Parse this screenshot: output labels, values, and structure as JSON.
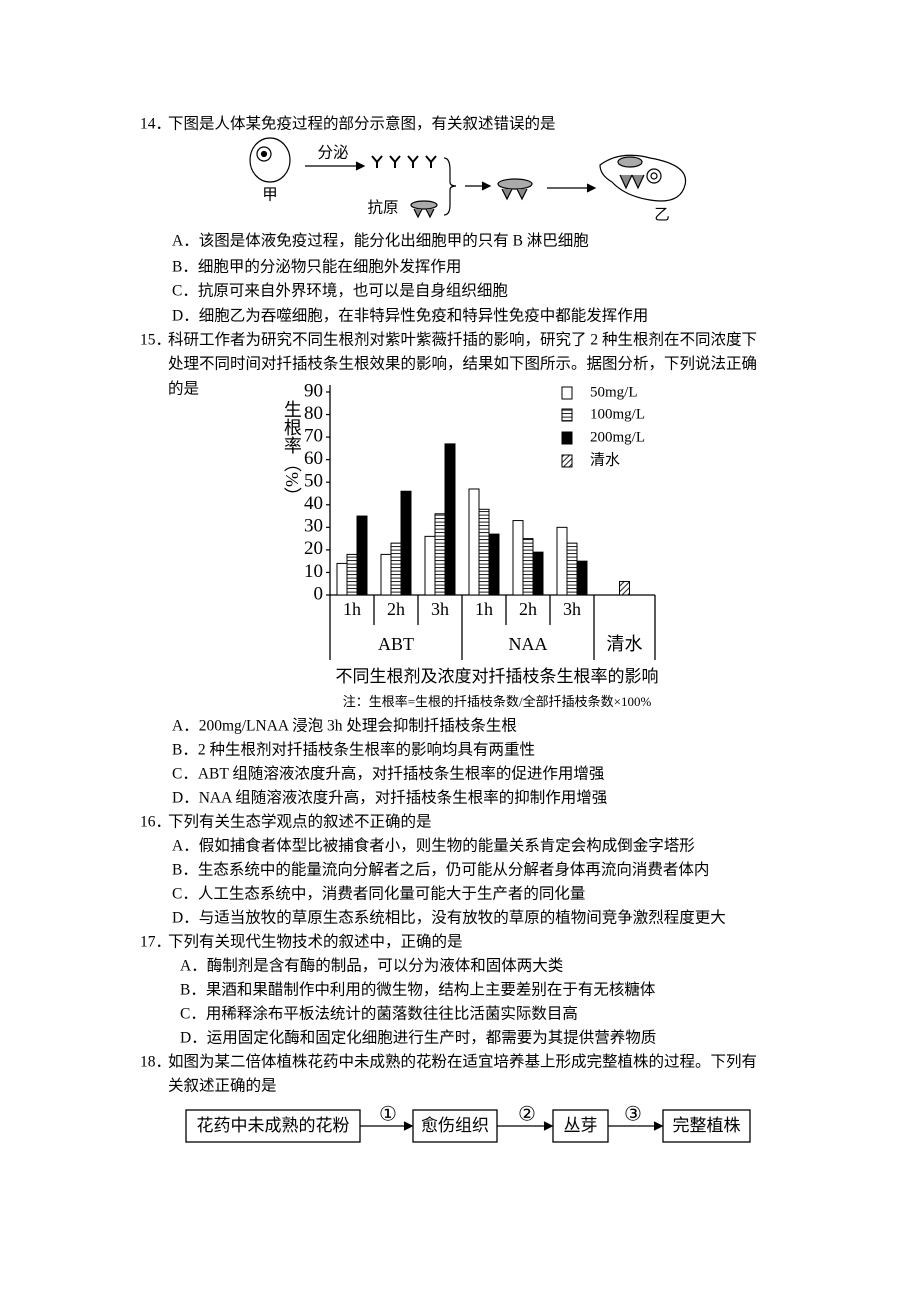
{
  "questions": [
    {
      "number": "14．",
      "stem": [
        "下图是人体某免疫过程的部分示意图，有关叙述错误的是"
      ],
      "diagram": {
        "cell_a": "甲",
        "secrete": "分泌",
        "antigen": "抗原",
        "cell_b": "乙"
      },
      "options": [
        "A．该图是体液免疫过程，能分化出细胞甲的只有 B 淋巴细胞",
        "B．细胞甲的分泌物只能在细胞外发挥作用",
        "C．抗原可来自外界环境，也可以是自身组织细胞",
        "D．细胞乙为吞噬细胞，在非特异性免疫和特异性免疫中都能发挥作用"
      ]
    },
    {
      "number": "15．",
      "stem": [
        "科研工作者为研究不同生根剂对紫叶紫薇扦插的影响，研究了 2 种生根剂在不同浓度下",
        "处理不同时间对扦插枝条生根效果的影响，结果如下图所示。据图分析，下列说法正确",
        "的是"
      ],
      "options": [
        "A．200mg/LNAA 浸泡 3h 处理会抑制扦插枝条生根",
        "B．2 种生根剂对扦插枝条生根率的影响均具有两重性",
        "C．ABT 组随溶液浓度升高，对扦插枝条生根率的促进作用增强",
        "D．NAA 组随溶液浓度升高，对扦插枝条生根率的抑制作用增强"
      ]
    },
    {
      "number": "16．",
      "stem": [
        "下列有关生态学观点的叙述不正确的是"
      ],
      "options": [
        "A．假如捕食者体型比被捕食者小，则生物的能量关系肯定会构成倒金字塔形",
        "B．生态系统中的能量流向分解者之后，仍可能从分解者身体再流向消费者体内",
        "C．人工生态系统中，消费者同化量可能大于生产者的同化量",
        "D．与适当放牧的草原生态系统相比，没有放牧的草原的植物间竞争激烈程度更大"
      ]
    },
    {
      "number": "17．",
      "stem": [
        "下列有关现代生物技术的叙述中，正确的是"
      ],
      "options": [
        "A．酶制剂是含有酶的制品，可以分为液体和固体两大类",
        "B．果酒和果醋制作中利用的微生物，结构上主要差别在于有无核糖体",
        "C．用稀释涂布平板法统计的菌落数往往比活菌实际数目高",
        "D．运用固定化酶和固定化细胞进行生产时，都需要为其提供营养物质"
      ]
    },
    {
      "number": "18．",
      "stem": [
        "如图为某二倍体植株花药中未成熟的花粉在适宜培养基上形成完整植株的过程。下列有",
        "关叙述正确的是"
      ],
      "flow": {
        "steps": [
          "花药中未成熟的花粉",
          "愈伤组织",
          "丛芽",
          "完整植株"
        ],
        "arrows": [
          "①",
          "②",
          "③"
        ]
      }
    }
  ],
  "chart_data": {
    "type": "bar",
    "title": "不同生根剂及浓度对扦插枝条生根率的影响",
    "note": "注：生根率=生根的扦插枝条数/全部扦插枝条数×100%",
    "y_label": "生根率（%）",
    "categories": [
      "1h",
      "2h",
      "3h",
      "1h",
      "2h",
      "3h",
      null
    ],
    "groups": [
      "ABT",
      "ABT",
      "ABT",
      "NAA",
      "NAA",
      "NAA",
      "清水"
    ],
    "series": [
      {
        "name": "50mg/L",
        "pattern": "none",
        "values": [
          14,
          18,
          26,
          47,
          33,
          30,
          null
        ]
      },
      {
        "name": "100mg/L",
        "pattern": "horizontal",
        "values": [
          18,
          23,
          36,
          38,
          25,
          23,
          null
        ]
      },
      {
        "name": "200mg/L",
        "pattern": "solid",
        "values": [
          35,
          46,
          67,
          27,
          19,
          15,
          null
        ]
      },
      {
        "name": "清水",
        "pattern": "diagonal",
        "values": [
          null,
          null,
          null,
          null,
          null,
          null,
          6
        ]
      }
    ],
    "ylim": [
      0,
      90
    ],
    "yticks": [
      0,
      10,
      20,
      30,
      40,
      50,
      60,
      70,
      80,
      90
    ],
    "legend": "top-right"
  }
}
